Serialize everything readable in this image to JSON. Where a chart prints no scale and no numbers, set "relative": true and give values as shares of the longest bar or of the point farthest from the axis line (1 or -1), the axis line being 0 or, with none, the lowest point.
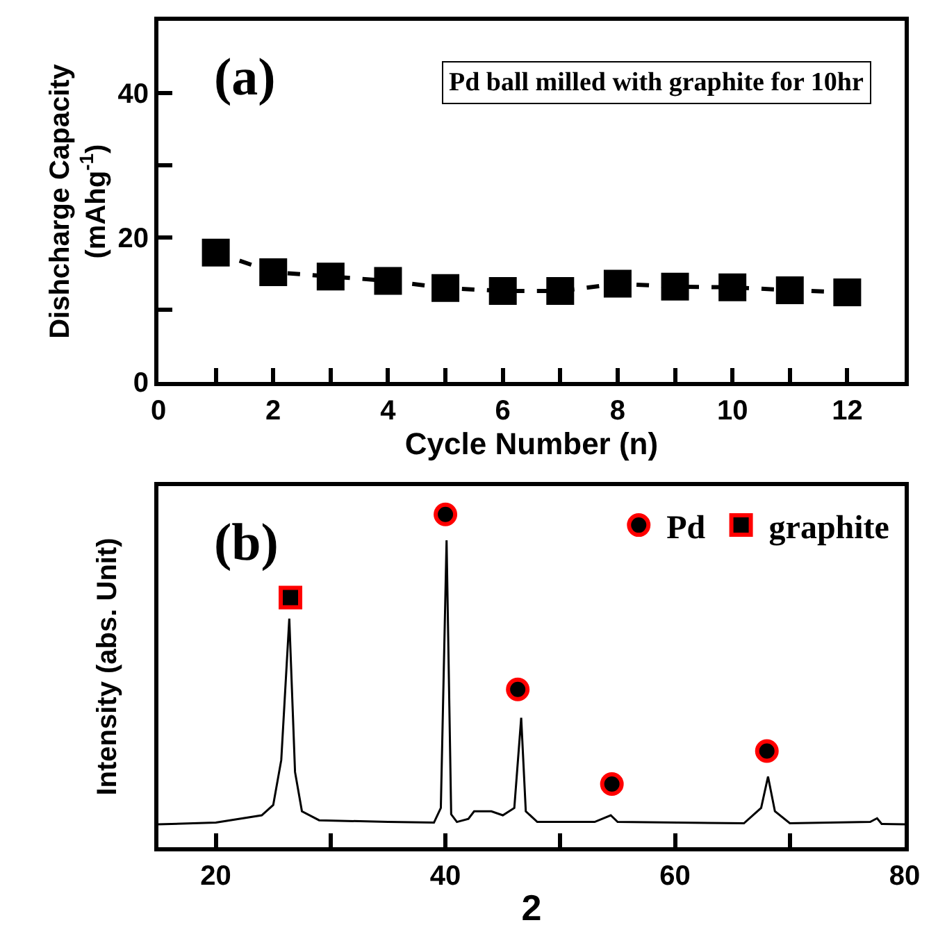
{
  "chart_data": [
    {
      "type": "line",
      "xlabel": "Cycle Number (n)",
      "ylabel": "Dishcharge Capacity\n(mAhg$^{-1}$)",
      "annotations": [
        "(a)",
        "Pd ball milled with graphite for 10hr"
      ],
      "x": [
        1,
        2,
        3,
        4,
        5,
        6,
        7,
        8,
        9,
        10,
        11,
        12
      ],
      "series": [
        {
          "color": "#000000",
          "values": [
            17.9,
            15.2,
            14.6,
            14.0,
            13.0,
            12.6,
            12.6,
            13.6,
            13.2,
            13.1,
            12.7,
            12.4
          ]
        }
      ],
      "marker": "square",
      "line_style": "dashed",
      "legend": false,
      "xlim": [
        0,
        13
      ],
      "xticks": [
        0,
        {
          "value": 1,
          "label": null
        },
        2,
        {
          "value": 3,
          "label": null
        },
        4,
        {
          "value": 5,
          "label": null
        },
        6,
        {
          "value": 7,
          "label": null
        },
        8,
        {
          "value": 9,
          "label": null
        },
        10,
        {
          "value": 11,
          "label": null
        },
        12
      ],
      "ylim": [
        0,
        50
      ],
      "yticks": [
        0,
        {
          "value": 10,
          "label": null
        },
        20,
        {
          "value": 30,
          "label": null
        },
        40
      ]
    },
    {
      "type": "line",
      "relative": true,
      "xlabel": "2",
      "ylabel": "Intensity (abs. Unit)",
      "annotations": [
        "(b)"
      ],
      "legend": "top right",
      "tick_labels": "x",
      "xlim": [
        15,
        80
      ],
      "xticks": [
        20,
        {
          "value": 30,
          "label": null
        },
        40,
        {
          "value": 50,
          "label": null
        },
        60,
        {
          "value": 70,
          "label": null
        },
        80
      ],
      "series": [
        {
          "type": "line",
          "color": "#000000",
          "marker": "none",
          "x": [
            15,
            20,
            24,
            25,
            25.7,
            26.4,
            26.9,
            27.5,
            29,
            35,
            39,
            39.6,
            40.1,
            40.5,
            41,
            42,
            42.5,
            44,
            45,
            46,
            46.6,
            47,
            48,
            53,
            54.4,
            55,
            66,
            67.5,
            68.1,
            68.7,
            70,
            77,
            77.6,
            78,
            80
          ],
          "values": [
            0.069,
            0.074,
            0.096,
            0.127,
            0.262,
            0.687,
            0.226,
            0.108,
            0.081,
            0.076,
            0.074,
            0.118,
            0.922,
            0.099,
            0.076,
            0.085,
            0.108,
            0.108,
            0.096,
            0.118,
            0.389,
            0.108,
            0.076,
            0.076,
            0.096,
            0.076,
            0.072,
            0.118,
            0.212,
            0.108,
            0.072,
            0.076,
            0.087,
            0.07,
            0.069
          ]
        },
        {
          "type": "scatter",
          "name": "Pd",
          "color": "#000000",
          "marker": "circle",
          "x": [
            40.0,
            46.3,
            54.5,
            68.0
          ],
          "values": [
            1.0,
            0.474,
            0.19,
            0.289
          ]
        },
        {
          "type": "scatter",
          "name": "graphite",
          "color": "#000000",
          "marker": "square",
          "x": [
            26.5
          ],
          "values": [
            0.75
          ]
        }
      ]
    }
  ]
}
